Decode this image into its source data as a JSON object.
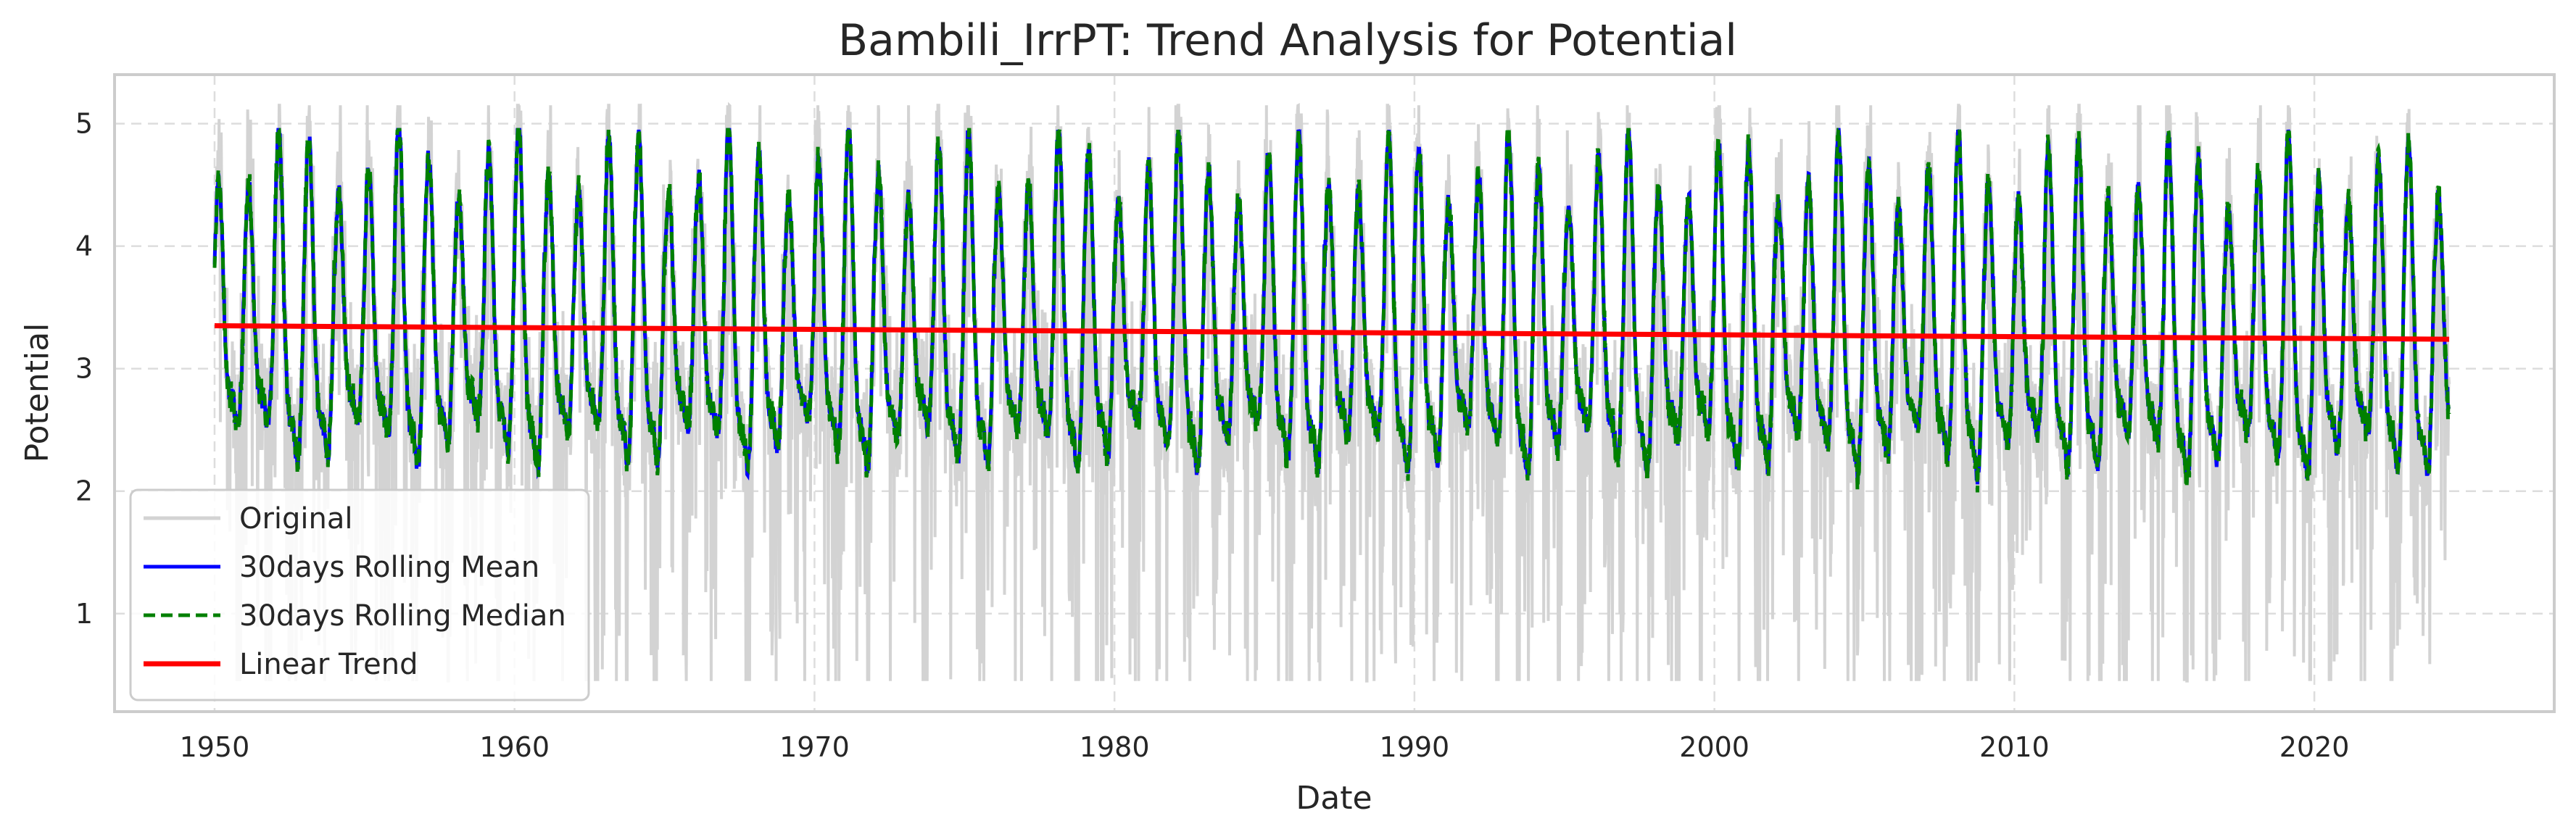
{
  "chart_data": {
    "type": "line",
    "title": "Bambili_IrrPT: Trend Analysis for Potential",
    "xlabel": "Date",
    "ylabel": "Potential",
    "xlim": [
      "1946-09-01",
      "2027-12-31"
    ],
    "ylim": [
      0.2,
      5.4
    ],
    "x_ticks": [
      "1950",
      "1960",
      "1970",
      "1980",
      "1990",
      "2000",
      "2010",
      "2020"
    ],
    "y_ticks": [
      "1",
      "2",
      "3",
      "4",
      "5"
    ],
    "grid": true,
    "legend_position": "lower-left",
    "x_range": [
      "1950-01-01",
      "2024-06-30"
    ],
    "series": [
      {
        "name": "Original",
        "color": "#d3d3d3",
        "style": "solid",
        "description": "daily values, seasonal oscillation roughly between 0.5 and 5.1"
      },
      {
        "name": "30days Rolling Mean",
        "color": "#0000ff",
        "style": "solid",
        "description": "seasonal oscillation roughly between 2.0 and 4.9"
      },
      {
        "name": "30days Rolling Median",
        "color": "#008000",
        "style": "dashed",
        "description": "seasonal oscillation roughly between 2.0 and 4.9"
      },
      {
        "name": "Linear Trend",
        "color": "#ff0000",
        "style": "solid",
        "values": [
          {
            "x": "1950-01-01",
            "y": 3.35
          },
          {
            "x": "2024-06-30",
            "y": 3.24
          }
        ]
      }
    ]
  }
}
